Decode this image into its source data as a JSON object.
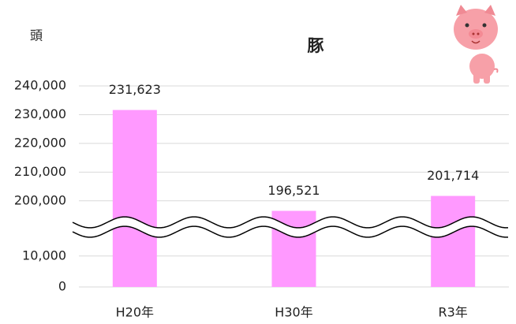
{
  "chart_data": {
    "type": "bar",
    "title": "豚",
    "ylabel": "頭",
    "categories": [
      "H20年",
      "H30年",
      "R3年"
    ],
    "values": [
      231623,
      196521,
      201714
    ],
    "value_labels": [
      "231,623",
      "196,521",
      "201,714"
    ],
    "color": "#ff99ff",
    "ylim": [
      0,
      240000
    ],
    "ybreak": [
      13000,
      195000
    ],
    "yticks": [
      0,
      {
        "value": 10000,
        "label": "10,000"
      },
      {
        "value": 200000,
        "label": "200,000"
      },
      {
        "value": 210000,
        "label": "210,000"
      },
      {
        "value": 220000,
        "label": "220,000"
      },
      {
        "value": 230000,
        "label": "230,000"
      },
      {
        "value": 240000,
        "label": "240,000"
      }
    ],
    "grid": true
  }
}
